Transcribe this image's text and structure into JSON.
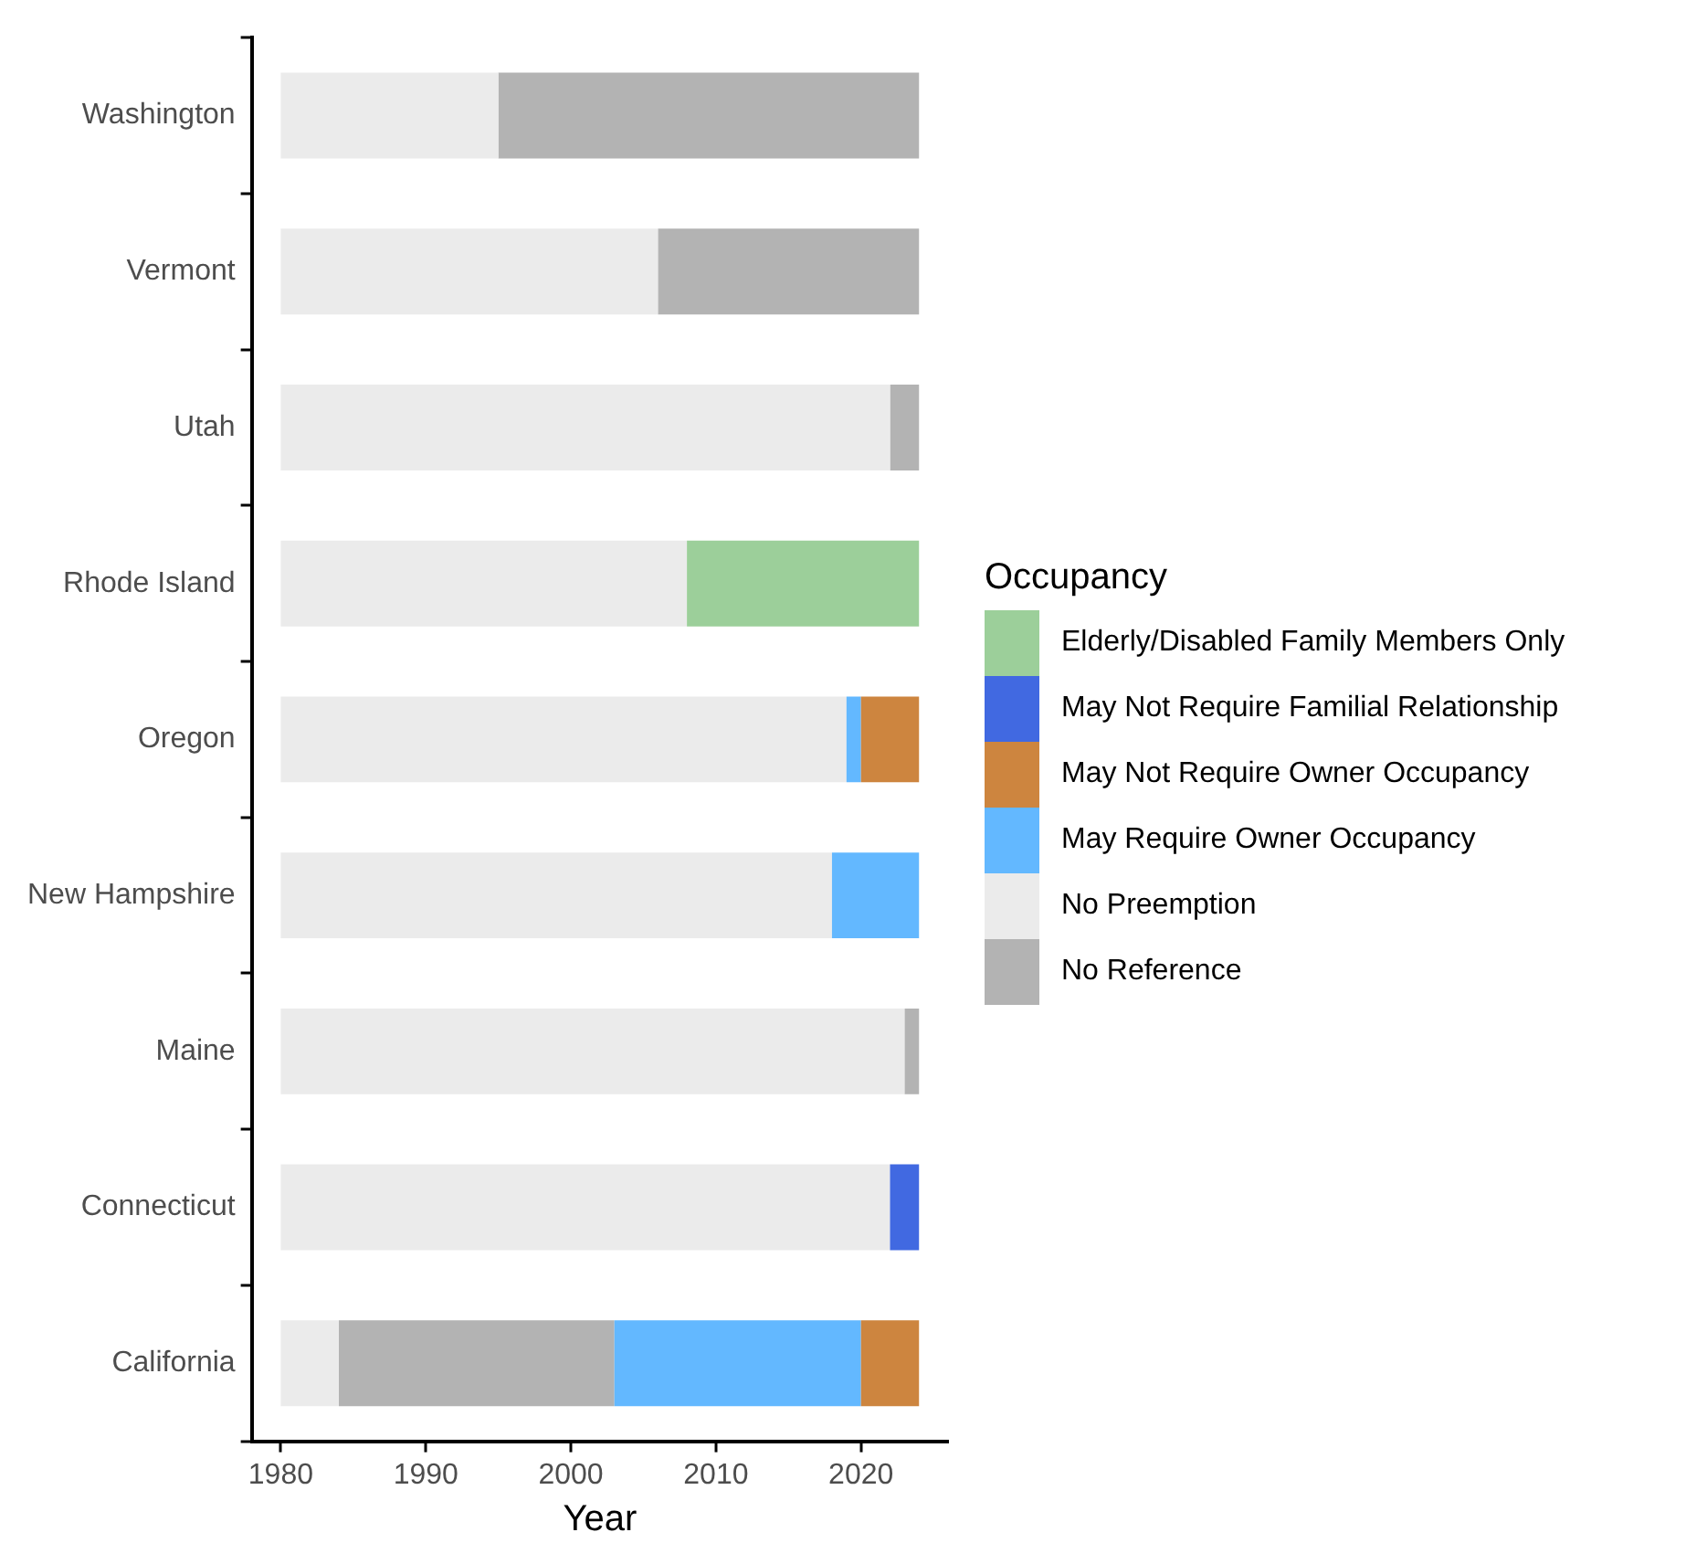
{
  "chart_data": {
    "type": "bar",
    "orientation": "horizontal",
    "xlabel": "Year",
    "legend_title": "Occupancy",
    "legend": "right",
    "categories": [
      "Washington",
      "Vermont",
      "Utah",
      "Rhode Island",
      "Oregon",
      "New Hampshire",
      "Maine",
      "Connecticut",
      "California"
    ],
    "series": [
      {
        "name": "Elderly/Disabled Family Members Only",
        "color": "#9ccf9a",
        "base": [
          null,
          null,
          null,
          2008,
          null,
          null,
          null,
          null,
          null
        ],
        "values": [
          null,
          null,
          null,
          16,
          null,
          null,
          null,
          null,
          null
        ]
      },
      {
        "name": "May Not Require Familial Relationship",
        "color": "#4169e1",
        "base": [
          null,
          null,
          null,
          null,
          null,
          null,
          null,
          2022,
          null
        ],
        "values": [
          null,
          null,
          null,
          null,
          null,
          null,
          null,
          2,
          null
        ]
      },
      {
        "name": "May Not Require Owner Occupancy",
        "color": "#cd853f",
        "base": [
          null,
          null,
          null,
          null,
          2020,
          null,
          null,
          null,
          2020
        ],
        "values": [
          null,
          null,
          null,
          null,
          4,
          null,
          null,
          null,
          4
        ]
      },
      {
        "name": "May Require Owner Occupancy",
        "color": "#63b8ff",
        "base": [
          null,
          null,
          null,
          null,
          2019,
          2018,
          null,
          null,
          2003
        ],
        "values": [
          null,
          null,
          null,
          null,
          1,
          6,
          null,
          null,
          17
        ]
      },
      {
        "name": "No Preemption",
        "color": "#ebebeb",
        "base": [
          1980,
          1980,
          1980,
          1980,
          1980,
          1980,
          1980,
          1980,
          1980
        ],
        "values": [
          15,
          26,
          42,
          28,
          39,
          38,
          43,
          42,
          4
        ]
      },
      {
        "name": "No Reference",
        "color": "#b3b3b3",
        "base": [
          1995,
          2006,
          2022,
          null,
          null,
          null,
          2023,
          null,
          1984
        ],
        "values": [
          29,
          18,
          2,
          null,
          null,
          null,
          1,
          null,
          19
        ]
      }
    ],
    "xlim": [
      1978,
      2026
    ],
    "xticks": [
      1980,
      1990,
      2000,
      2010,
      2020
    ]
  }
}
